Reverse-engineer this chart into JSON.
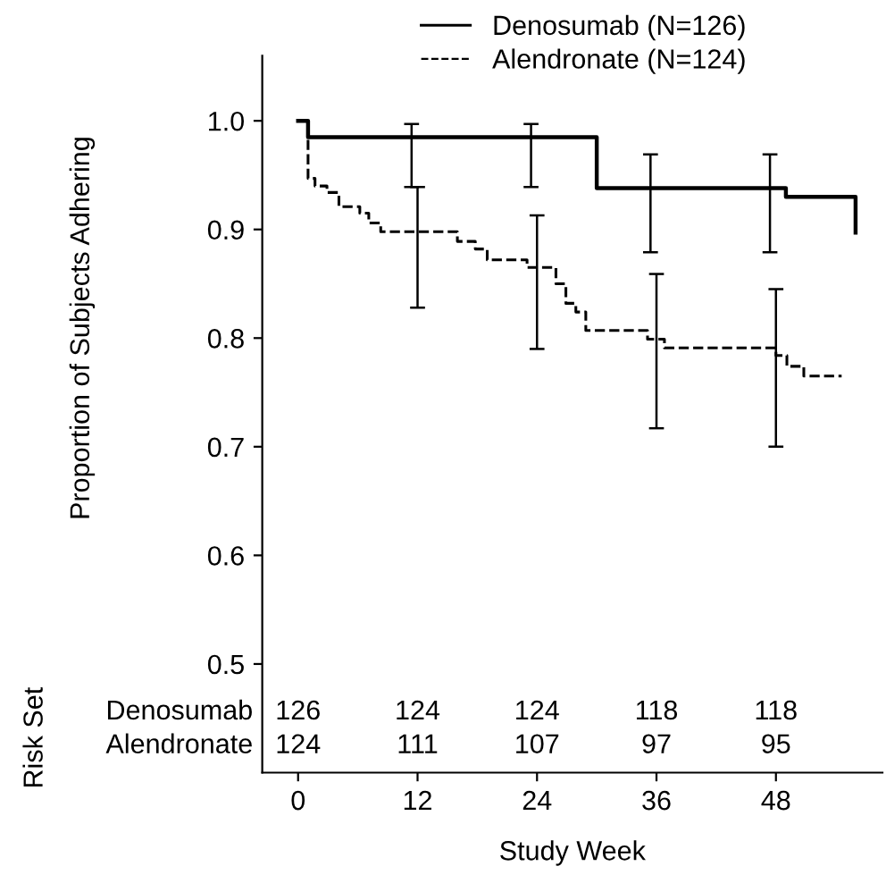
{
  "chart_data": {
    "type": "step",
    "xlabel": "Study Week",
    "ylabel": "Proportion of Subjects Adhering",
    "xlim": [
      -3.6,
      58.7
    ],
    "ylim": [
      0.4,
      1.06
    ],
    "xticks": [
      0,
      12,
      24,
      36,
      48
    ],
    "yticks": [
      0.5,
      0.6,
      0.7,
      0.8,
      0.9,
      {
        "value": 1,
        "label": "1.0"
      }
    ],
    "grid": false,
    "legend": "top right",
    "marker": "none",
    "series": [
      {
        "name": "Denosumab (N=126)",
        "color": "#000000",
        "line_style": "solid",
        "x": [
          0,
          1.0,
          11.4,
          23.4,
          30,
          35.4,
          47.4,
          49,
          56
        ],
        "values": [
          1.0,
          0.985,
          0.985,
          0.985,
          0.938,
          0.938,
          0.938,
          0.93,
          0.897
        ],
        "errors": [
          null,
          null,
          [
            0.939,
            0.997
          ],
          [
            0.939,
            0.997
          ],
          null,
          [
            0.879,
            0.969
          ],
          [
            0.879,
            0.969
          ],
          null,
          null
        ]
      },
      {
        "name": "Alendronate (N=124)",
        "color": "#000000",
        "line_style": "dashed",
        "x": [
          0,
          1.0,
          1.7,
          2.9,
          4.1,
          6.2,
          7.1,
          8.3,
          12,
          16.0,
          17.8,
          19.0,
          23.0,
          24,
          25.9,
          26.9,
          27.9,
          28.9,
          35.1,
          36,
          36.8,
          48,
          49.1,
          50.8,
          54.6
        ],
        "values": [
          1.0,
          0.947,
          0.94,
          0.934,
          0.921,
          0.915,
          0.906,
          0.898,
          0.898,
          0.889,
          0.882,
          0.872,
          0.865,
          0.865,
          0.85,
          0.832,
          0.824,
          0.807,
          0.799,
          0.799,
          0.791,
          0.784,
          0.774,
          0.765,
          0.765
        ],
        "errors": [
          null,
          null,
          null,
          null,
          null,
          null,
          null,
          null,
          [
            0.828,
            0.939
          ],
          null,
          null,
          null,
          null,
          [
            0.79,
            0.913
          ],
          null,
          null,
          null,
          null,
          null,
          [
            0.717,
            0.859
          ],
          null,
          [
            0.7,
            0.845
          ],
          null,
          null,
          null
        ]
      }
    ],
    "annotations": [
      "Risk Set",
      "Denosumab",
      "126",
      "124",
      "124",
      "118",
      "118",
      "Alendronate",
      "124",
      "111",
      "107",
      "97",
      "95"
    ]
  }
}
